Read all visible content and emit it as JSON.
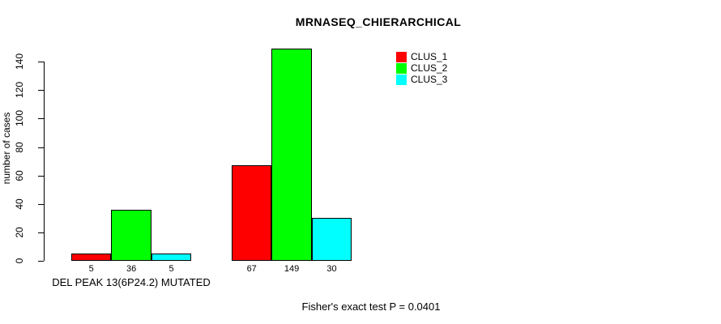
{
  "page": {
    "background": "#FFFFFF",
    "foreground": "#000000"
  },
  "chart_data": {
    "type": "bar",
    "title": "MRNASEQ_CHIERARCHICAL",
    "ylabel": "number of cases",
    "xlabel": "",
    "ylim": [
      0,
      140
    ],
    "yticks": [
      0,
      20,
      40,
      60,
      80,
      100,
      120,
      140
    ],
    "grid": false,
    "legend": {
      "position": "top-right",
      "entries": [
        "CLUS_1",
        "CLUS_2",
        "CLUS_3"
      ]
    },
    "groups": [
      {
        "label": "DEL PEAK 13(6P24.2) MUTATED"
      },
      {
        "label": ""
      }
    ],
    "series": [
      {
        "name": "CLUS_1",
        "color": "#FF0000",
        "values": [
          5,
          67
        ]
      },
      {
        "name": "CLUS_2",
        "color": "#00FF00",
        "values": [
          36,
          149
        ]
      },
      {
        "name": "CLUS_3",
        "color": "#00FFFF",
        "values": [
          5,
          30
        ]
      }
    ],
    "bar_value_labels": [
      [
        5,
        36,
        5
      ],
      [
        67,
        149,
        30
      ]
    ],
    "annotation": "Fisher's exact test P = 0.0401"
  }
}
